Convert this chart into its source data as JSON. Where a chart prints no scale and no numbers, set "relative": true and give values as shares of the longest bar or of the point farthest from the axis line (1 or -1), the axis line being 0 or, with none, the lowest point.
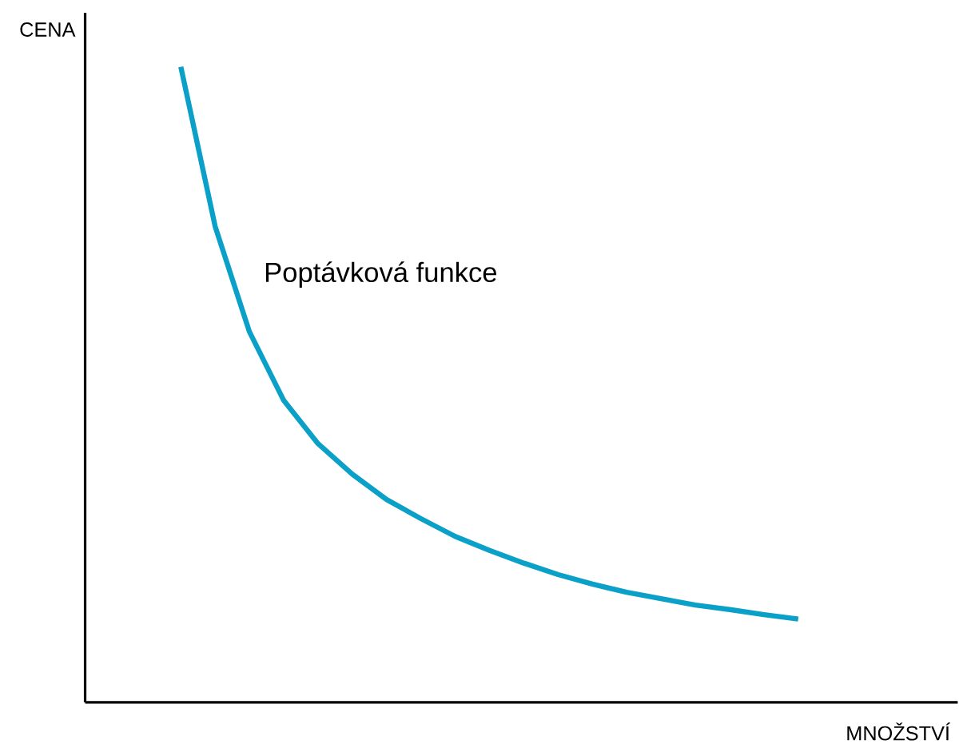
{
  "chart_data": {
    "type": "line",
    "relative": true,
    "xlabel": "MNOŽSTVÍ",
    "ylabel": "CENA",
    "categories": [
      null,
      null,
      null,
      null,
      null,
      null,
      null,
      null,
      null,
      null,
      null,
      null,
      null,
      null,
      null,
      null,
      null,
      null,
      null
    ],
    "series": [
      {
        "name": "Poptávková funkce",
        "color": "#0aa0c8",
        "values": [
          1,
          0.749,
          0.583,
          0.475,
          0.407,
          0.359,
          0.319,
          0.289,
          0.261,
          0.239,
          0.219,
          0.201,
          0.186,
          0.173,
          0.163,
          0.153,
          0.146,
          0.138,
          0.131
        ]
      }
    ]
  }
}
